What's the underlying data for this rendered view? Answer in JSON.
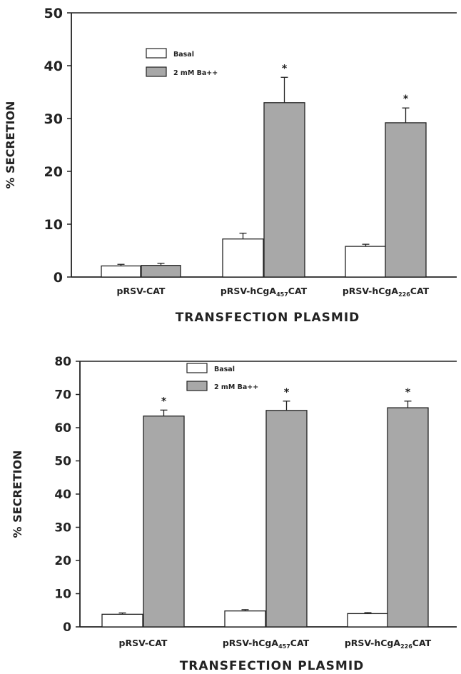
{
  "chart_data": [
    {
      "type": "bar",
      "ylabel": "% SECRETION",
      "xlabel": "TRANSFECTION PLASMID",
      "ylim": [
        0,
        50
      ],
      "yticks": [
        0,
        10,
        20,
        30,
        40,
        50
      ],
      "categories": [
        {
          "base": "pRSV-CAT",
          "sub": "",
          "suffix": ""
        },
        {
          "base": "pRSV-hCgA",
          "sub": "457",
          "suffix": "CAT"
        },
        {
          "base": "pRSV-hCgA",
          "sub": "226",
          "suffix": "CAT"
        }
      ],
      "series": [
        {
          "name": "Basal",
          "color": "#ffffff",
          "values": [
            2.1,
            7.2,
            5.8
          ],
          "errors": [
            0.3,
            1.1,
            0.4
          ]
        },
        {
          "name": "2 mM Ba++",
          "color": "#a8a8a8",
          "values": [
            2.2,
            33.0,
            29.2
          ],
          "errors": [
            0.4,
            4.8,
            2.8
          ]
        }
      ],
      "significance": [
        "",
        "*",
        "*"
      ],
      "legend": "top-left"
    },
    {
      "type": "bar",
      "ylabel": "% SECRETION",
      "xlabel": "TRANSFECTION PLASMID",
      "ylim": [
        0,
        80
      ],
      "yticks": [
        0,
        10,
        20,
        30,
        40,
        50,
        60,
        70,
        80
      ],
      "categories": [
        {
          "base": "pRSV-CAT",
          "sub": "",
          "suffix": ""
        },
        {
          "base": "pRSV-hCgA",
          "sub": "457",
          "suffix": "CAT"
        },
        {
          "base": "pRSV-hCgA",
          "sub": "226",
          "suffix": "CAT"
        }
      ],
      "series": [
        {
          "name": "Basal",
          "color": "#ffffff",
          "values": [
            3.8,
            4.8,
            4.0
          ],
          "errors": [
            0.4,
            0.4,
            0.3
          ]
        },
        {
          "name": "2 mM Ba++",
          "color": "#a8a8a8",
          "values": [
            63.5,
            65.2,
            66.0
          ],
          "errors": [
            1.8,
            2.8,
            2.0
          ]
        }
      ],
      "significance": [
        "*",
        "*",
        "*"
      ],
      "legend": "top-left"
    }
  ]
}
